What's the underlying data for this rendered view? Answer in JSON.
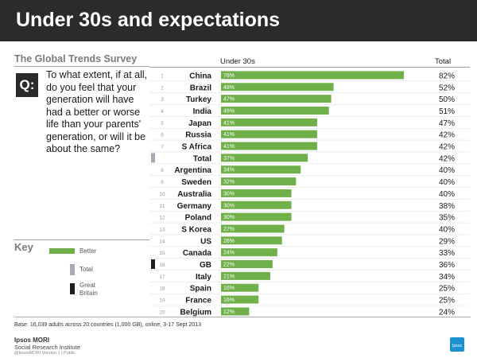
{
  "title": "Under 30s and expectations",
  "survey_name": "The Global Trends Survey",
  "question_badge": "Q:",
  "question": "To what extent, if at all, do you feel that your generation will have had a better or worse life than your parents' generation, or will it be about the same?",
  "key": {
    "label": "Key",
    "better": "Better",
    "total": "Total",
    "great_britain": "Great Britain"
  },
  "colors": {
    "bar": "#6fb04a",
    "total_marker": "#a9aab8",
    "gb_marker": "#1e1e1e",
    "title_bg": "#2b2b2b"
  },
  "chart_data": {
    "type": "bar",
    "orientation": "horizontal",
    "column_headers": {
      "under_30s": "Under 30s",
      "total": "Total"
    },
    "ranks": [
      "1",
      "2",
      "3",
      "4",
      "5",
      "6",
      "7",
      "8",
      "9",
      "10",
      "11",
      "12",
      "13",
      "14",
      "15",
      "16",
      "17",
      "18",
      "19",
      "20"
    ],
    "categories": [
      "China",
      "Brazil",
      "Turkey",
      "India",
      "Japan",
      "Russia",
      "S Africa",
      "Total",
      "Argentina",
      "Sweden",
      "Australia",
      "Germany",
      "Poland",
      "S Korea",
      "US",
      "Canada",
      "GB",
      "Italy",
      "Spain",
      "France",
      "Belgium"
    ],
    "rank_labels": [
      "1",
      "2",
      "3",
      "4",
      "5",
      "6",
      "7",
      "",
      "8",
      "9",
      "10",
      "11",
      "12",
      "13",
      "14",
      "15",
      "16",
      "17",
      "18",
      "19",
      "20"
    ],
    "values": [
      78,
      48,
      47,
      46,
      41,
      41,
      41,
      37,
      34,
      32,
      30,
      30,
      30,
      27,
      26,
      24,
      22,
      21,
      16,
      16,
      12
    ],
    "value_labels": [
      "78%",
      "48%",
      "47%",
      "46%",
      "41%",
      "41%",
      "41%",
      "37%",
      "34%",
      "32%",
      "30%",
      "30%",
      "30%",
      "27%",
      "26%",
      "24%",
      "22%",
      "21%",
      "16%",
      "16%",
      "12%"
    ],
    "totals": [
      "82%",
      "52%",
      "50%",
      "51%",
      "47%",
      "42%",
      "42%",
      "42%",
      "40%",
      "40%",
      "40%",
      "38%",
      "35%",
      "40%",
      "29%",
      "33%",
      "36%",
      "34%",
      "25%",
      "25%",
      "24%"
    ],
    "highlight": {
      "Total": "total",
      "GB": "great_britain"
    },
    "xlim": [
      0,
      100
    ]
  },
  "base_note": "Base: 16,039 adults across 20 countries (1,000 GB), online, 3-17 Sept 2013",
  "brand": {
    "name": "Ipsos MORI",
    "sub": "Social Research Institute",
    "version": "@IpsosMORI   Version 1 | Public",
    "logo": "Ipsos"
  }
}
